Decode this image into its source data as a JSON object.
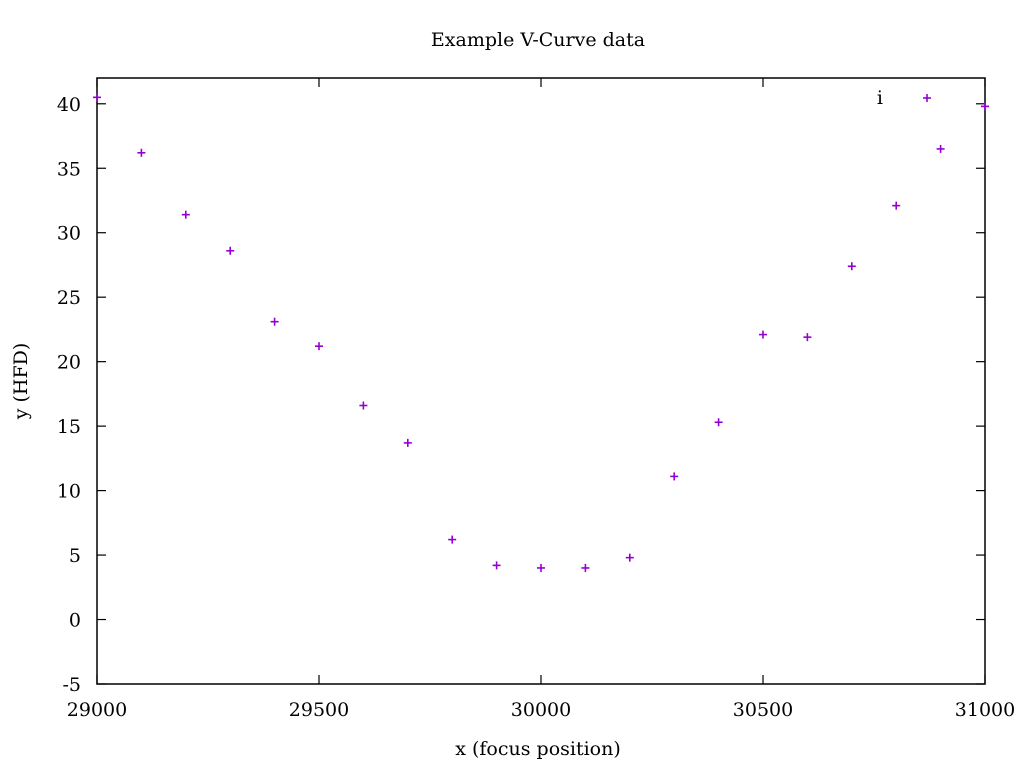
{
  "chart_data": {
    "type": "scatter",
    "title": "Example V-Curve data",
    "xlabel": "x (focus position)",
    "ylabel": "y (HFD)",
    "xlim": [
      29000,
      31000
    ],
    "ylim": [
      -5,
      42
    ],
    "xticks": [
      29000,
      29500,
      30000,
      30500,
      31000
    ],
    "yticks": [
      -5,
      0,
      5,
      10,
      15,
      20,
      25,
      30,
      35,
      40
    ],
    "grid": false,
    "legend": "top-right",
    "series": [
      {
        "name": "i",
        "color": "#9400d3",
        "marker": "plus",
        "points": [
          [
            29000,
            40.5
          ],
          [
            29100,
            36.2
          ],
          [
            29200,
            31.4
          ],
          [
            29300,
            28.6
          ],
          [
            29400,
            23.1
          ],
          [
            29500,
            21.2
          ],
          [
            29600,
            16.6
          ],
          [
            29700,
            13.7
          ],
          [
            29800,
            6.2
          ],
          [
            29900,
            4.2
          ],
          [
            30000,
            4.0
          ],
          [
            30100,
            4.0
          ],
          [
            30200,
            4.8
          ],
          [
            30300,
            11.1
          ],
          [
            30400,
            15.3
          ],
          [
            30500,
            22.1
          ],
          [
            30600,
            21.9
          ],
          [
            30700,
            27.4
          ],
          [
            30800,
            32.1
          ],
          [
            30900,
            36.5
          ],
          [
            31000,
            39.8
          ]
        ]
      }
    ]
  }
}
